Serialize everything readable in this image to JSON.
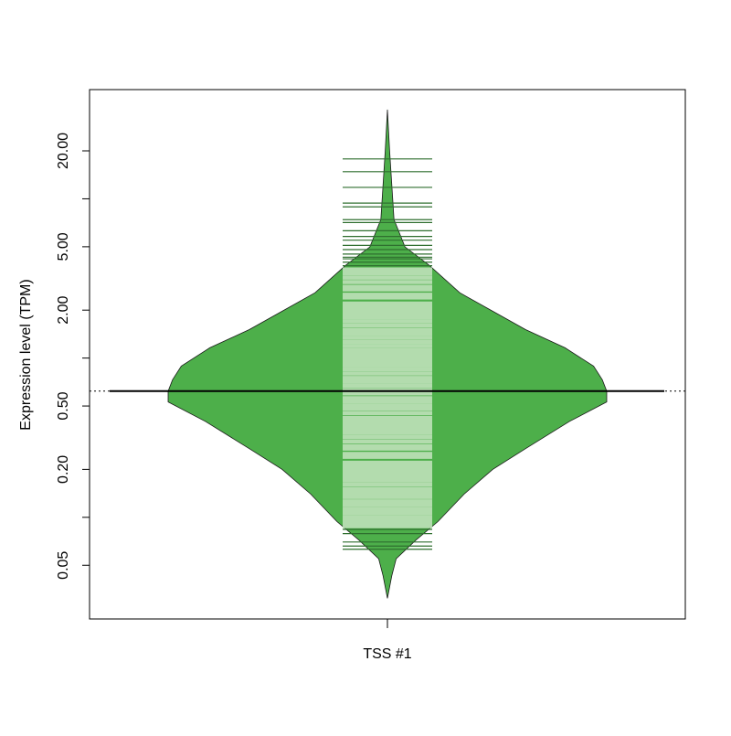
{
  "chart_data": {
    "type": "beanplot",
    "categories": [
      "TSS #1"
    ],
    "ylabel": "Expression level (TPM)",
    "log_scale": true,
    "ylim": [
      0.023,
      48.5
    ],
    "yticks": [
      {
        "value": 0.05,
        "label": "0.05"
      },
      {
        "value": 0.1,
        "label": null
      },
      {
        "value": 0.2,
        "label": "0.20"
      },
      {
        "value": 0.5,
        "label": "0.50"
      },
      {
        "value": 1,
        "label": null
      },
      {
        "value": 2,
        "label": "2.00"
      },
      {
        "value": 5,
        "label": "5.00"
      },
      {
        "value": 10,
        "label": null
      },
      {
        "value": 20,
        "label": "20.00"
      }
    ],
    "mean": 0.62,
    "color": "#4daf4a",
    "line_color": "#b3dcae",
    "line_color_outside": "#2f6f2f",
    "density": {
      "y": [
        36.3,
        20,
        7.41,
        4.99,
        3.83,
        2.57,
        1.97,
        1.51,
        1.16,
        0.89,
        0.73,
        0.62,
        0.53,
        0.4,
        0.27,
        0.2,
        0.14,
        0.094,
        0.072,
        0.055,
        0.043,
        0.031
      ],
      "values": [
        0,
        0.01,
        0.03,
        0.08,
        0.19,
        0.33,
        0.48,
        0.63,
        0.81,
        0.94,
        0.98,
        1,
        1,
        0.83,
        0.63,
        0.48,
        0.35,
        0.23,
        0.13,
        0.04,
        0.02,
        0
      ]
    },
    "points": [
      17.8,
      14.8,
      11.8,
      9.4,
      8.9,
      7.4,
      7.1,
      6.3,
      5.8,
      5.5,
      5.1,
      4.8,
      4.5,
      4.3,
      0.09,
      0.095,
      0.1,
      0.106,
      0.112,
      0.119,
      0.126,
      0.134,
      0.142,
      0.15,
      0.16,
      0.17,
      0.18,
      0.19,
      0.2,
      0.21,
      0.22,
      0.24,
      0.25,
      0.27,
      0.28,
      0.3,
      0.32,
      0.34,
      0.36,
      0.38,
      0.4,
      0.42,
      0.45,
      0.48,
      0.5,
      0.53,
      0.56,
      0.6,
      0.63,
      0.67,
      0.71,
      0.75,
      0.8,
      0.85,
      0.9,
      0.95,
      1,
      1.06,
      1.12,
      1.19,
      1.26,
      1.34,
      1.42,
      1.5,
      1.6,
      1.7,
      1.8,
      1.9,
      2,
      2.1,
      2.2,
      2.4,
      2.5,
      2.7,
      2.8,
      3,
      3.2,
      3.4,
      3.6,
      3.8,
      4,
      4.2,
      0.088,
      0.084,
      0.079,
      0.07,
      0.066,
      0.063
    ]
  }
}
